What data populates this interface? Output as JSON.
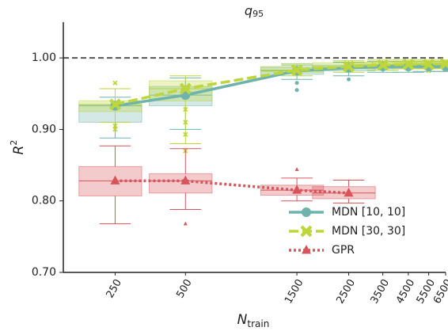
{
  "chart_data": {
    "type": "box",
    "title": "q",
    "title_subscript": "95",
    "ylabel": "R",
    "ylabel_superscript": "2",
    "xlabel": "N",
    "xlabel_subscript": "train",
    "xscale": "log",
    "xlim": [
      150,
      6500
    ],
    "xticks": [
      250,
      500,
      1500,
      2500,
      3500,
      4500,
      5500,
      6500
    ],
    "ylim": [
      0.7,
      1.05
    ],
    "yticks": [
      {
        "value": 0.7,
        "label": "0.70"
      },
      {
        "value": 0.8,
        "label": "0.80"
      },
      {
        "value": 0.9,
        "label": "0.90"
      },
      {
        "value": 1.0,
        "label": "1.00"
      }
    ],
    "hline": 1.0,
    "grid": false,
    "legend": "lower right",
    "series": [
      {
        "name": "MDN [10, 10]",
        "color": "#6fb3ad",
        "linestyle": "solid",
        "marker": "o",
        "x": [
          250,
          500,
          1500,
          2500,
          3500,
          4500,
          5500,
          6500
        ],
        "values": [
          0.933,
          0.948,
          0.982,
          0.986,
          0.988,
          0.988,
          0.988,
          0.988
        ],
        "q1": [
          0.91,
          0.933,
          0.977,
          0.982,
          0.985,
          0.985,
          0.985,
          0.985
        ],
        "q3": [
          0.935,
          0.96,
          0.987,
          0.99,
          0.991,
          0.991,
          0.991,
          0.991
        ],
        "whislo": [
          0.888,
          0.9,
          0.97,
          0.975,
          0.98,
          0.98,
          0.981,
          0.981
        ],
        "whishi": [
          0.945,
          0.972,
          0.99,
          0.994,
          0.995,
          0.995,
          0.995,
          0.995
        ],
        "outliers": [
          [],
          [],
          [
            0.965,
            0.955
          ],
          [
            0.97
          ],
          [],
          [],
          [],
          []
        ]
      },
      {
        "name": "MDN [30, 30]",
        "color": "#bcd63c",
        "linestyle": "dashed",
        "marker": "x",
        "x": [
          250,
          500,
          1500,
          2500,
          3500,
          4500,
          5500,
          6500
        ],
        "values": [
          0.935,
          0.957,
          0.983,
          0.988,
          0.99,
          0.991,
          0.991,
          0.992
        ],
        "q1": [
          0.925,
          0.94,
          0.98,
          0.985,
          0.987,
          0.988,
          0.988,
          0.989
        ],
        "q3": [
          0.94,
          0.968,
          0.988,
          0.993,
          0.994,
          0.995,
          0.995,
          0.995
        ],
        "whislo": [
          0.91,
          0.88,
          0.975,
          0.98,
          0.983,
          0.985,
          0.985,
          0.986
        ],
        "whishi": [
          0.957,
          0.975,
          0.992,
          0.996,
          0.997,
          0.997,
          0.997,
          0.997
        ],
        "outliers": [
          [
            0.965,
            0.905,
            0.9
          ],
          [
            0.928,
            0.91,
            0.893,
            0.87
          ],
          [],
          [],
          [],
          [],
          [
            0.982
          ],
          []
        ]
      },
      {
        "name": "GPR",
        "color": "#d9535a",
        "linestyle": "dotted",
        "marker": "^",
        "x": [
          250,
          500,
          1500,
          2500
        ],
        "values": [
          0.828,
          0.828,
          0.815,
          0.811
        ],
        "q1": [
          0.807,
          0.811,
          0.808,
          0.803
        ],
        "q3": [
          0.848,
          0.838,
          0.822,
          0.82
        ],
        "whislo": [
          0.768,
          0.788,
          0.8,
          0.797
        ],
        "whishi": [
          0.877,
          0.873,
          0.832,
          0.829
        ],
        "outliers": [
          [],
          [
            0.768
          ],
          [
            0.844
          ],
          []
        ]
      }
    ]
  }
}
